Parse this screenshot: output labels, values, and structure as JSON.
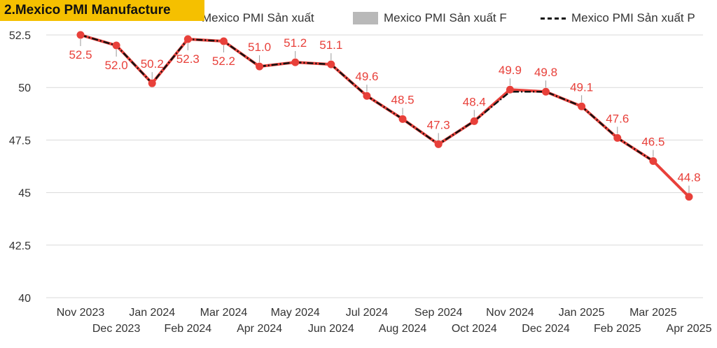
{
  "title": "2.Mexico PMI Manufacture",
  "legend": [
    {
      "label": "Mexico PMI Sản xuất",
      "swatch": "dot",
      "color": "#f2a93b"
    },
    {
      "label": "Mexico PMI Sản xuất F",
      "swatch": "box",
      "color": "#b9b9b9"
    },
    {
      "label": "Mexico PMI Sản xuất P",
      "swatch": "dash",
      "color": "#111111"
    }
  ],
  "chart_data": {
    "type": "line",
    "categories": [
      "Nov 2023",
      "Dec 2023",
      "Jan 2024",
      "Feb 2024",
      "Mar 2024",
      "Apr 2024",
      "May 2024",
      "Jun 2024",
      "Jul 2024",
      "Aug 2024",
      "Sep 2024",
      "Oct 2024",
      "Nov 2024",
      "Dec 2024",
      "Jan 2025",
      "Feb 2025",
      "Mar 2025",
      "Apr 2025"
    ],
    "series": [
      {
        "name": "Mexico PMI Sản xuất",
        "color": "#e8403a",
        "values": [
          52.5,
          52.0,
          50.2,
          52.3,
          52.2,
          51.0,
          51.2,
          51.1,
          49.6,
          48.5,
          47.3,
          48.4,
          49.9,
          49.8,
          49.1,
          47.6,
          46.5,
          44.8
        ]
      },
      {
        "name": "Mexico PMI Sản xuất P",
        "color": "#111111",
        "style": "dashed",
        "values": [
          52.5,
          52.0,
          50.2,
          52.3,
          52.2,
          51.0,
          51.2,
          51.1,
          49.6,
          48.5,
          47.3,
          48.4,
          49.8,
          49.8,
          49.1,
          47.6,
          46.5,
          null
        ]
      }
    ],
    "data_labels": [
      "52.5",
      "52.0",
      "50.2",
      "52.3",
      "52.2",
      "51.0",
      "51.2",
      "51.1",
      "49.6",
      "48.5",
      "47.3",
      "48.4",
      "49.9",
      "49.8",
      "49.1",
      "47.6",
      "46.5",
      "44.8"
    ],
    "y_ticks": [
      "52.5",
      "50",
      "47.5",
      "45",
      "42.5",
      "40"
    ],
    "y_tick_values": [
      52.5,
      50,
      47.5,
      45,
      42.5,
      40
    ],
    "ylim": [
      40,
      53
    ],
    "grid": true,
    "legend_position": "top"
  }
}
